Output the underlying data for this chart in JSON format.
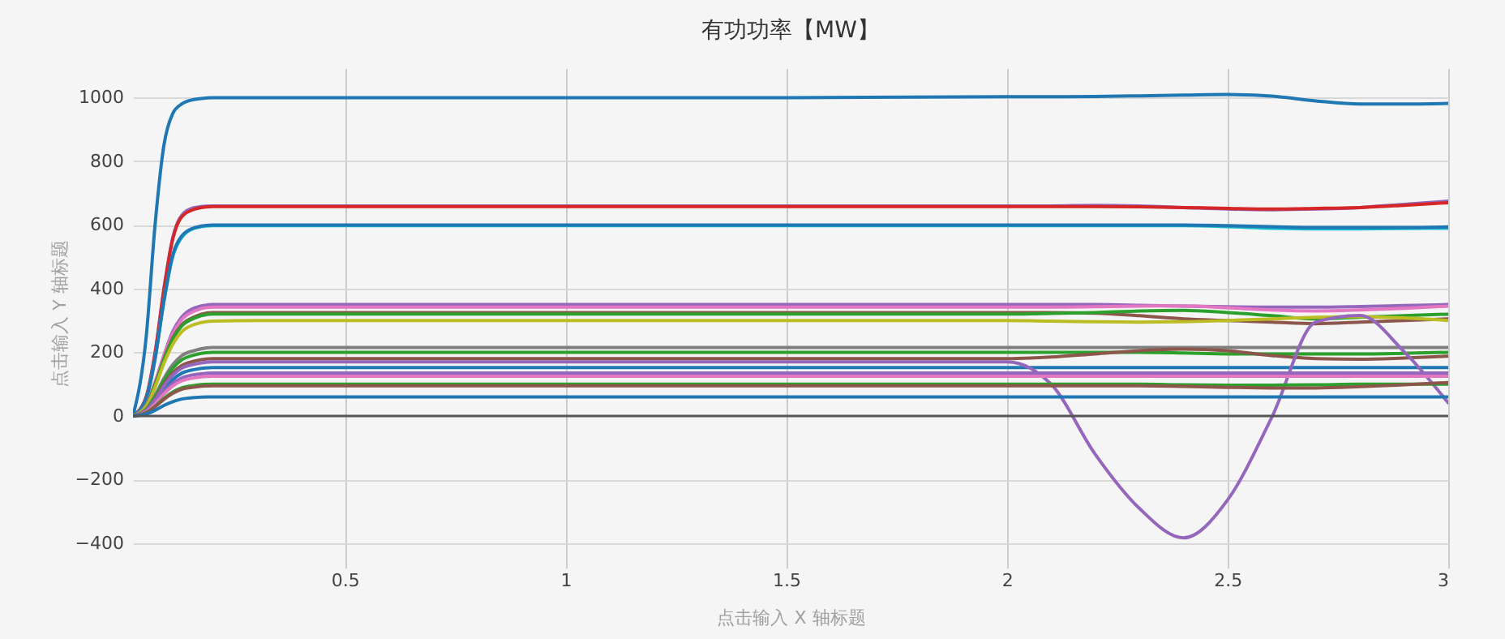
{
  "chart_data": {
    "type": "line",
    "title": "有功功率【MW】",
    "xlabel": "点击输入 X 轴标题",
    "ylabel": "点击输入 Y 轴标题",
    "x": [
      0.02,
      0.05,
      0.07,
      0.09,
      0.11,
      0.13,
      0.16,
      0.2,
      0.3,
      0.5,
      1,
      1.5,
      2,
      2.1,
      2.2,
      2.3,
      2.4,
      2.5,
      2.6,
      2.7,
      2.8,
      2.9,
      3
    ],
    "xlim": [
      0.02,
      3
    ],
    "xticks": [
      0.5,
      1,
      1.5,
      2,
      2.5,
      3
    ],
    "ylim": [
      -446,
      1093
    ],
    "yticks": [
      -400,
      -200,
      0,
      200,
      400,
      600,
      800,
      1000
    ],
    "grid": true,
    "ref_lines": [
      {
        "axis": "y",
        "value": 0,
        "color": "#555555"
      }
    ],
    "series": [
      {
        "color": "#1f77b4",
        "values": [
          0,
          250,
          600,
          850,
          950,
          980,
          995,
          1000,
          1000,
          1000,
          1000,
          1000,
          1003,
          1003,
          1004,
          1006,
          1008,
          1010,
          1005,
          990,
          980,
          980,
          982
        ]
      },
      {
        "color": "#9467bd",
        "values": [
          0,
          60,
          200,
          400,
          560,
          630,
          655,
          660,
          660,
          660,
          660,
          660,
          660,
          660,
          662,
          660,
          655,
          650,
          648,
          650,
          655,
          665,
          675
        ]
      },
      {
        "color": "#d62728",
        "values": [
          0,
          60,
          195,
          395,
          555,
          625,
          650,
          658,
          658,
          658,
          658,
          658,
          658,
          658,
          658,
          657,
          655,
          652,
          650,
          652,
          655,
          662,
          670
        ]
      },
      {
        "color": "#17becf",
        "values": [
          0,
          55,
          180,
          360,
          500,
          560,
          590,
          598,
          598,
          598,
          598,
          598,
          598,
          598,
          598,
          598,
          598,
          595,
          590,
          588,
          588,
          589,
          590
        ]
      },
      {
        "color": "#1f77b4",
        "values": [
          0,
          55,
          180,
          360,
          505,
          565,
          592,
          600,
          600,
          600,
          600,
          600,
          600,
          600,
          600,
          600,
          600,
          598,
          595,
          592,
          592,
          592,
          594
        ]
      },
      {
        "color": "#9467bd",
        "values": [
          0,
          35,
          105,
          190,
          265,
          310,
          340,
          350,
          350,
          350,
          350,
          350,
          350,
          350,
          350,
          348,
          345,
          343,
          342,
          342,
          344,
          347,
          350
        ]
      },
      {
        "color": "#e377c2",
        "values": [
          0,
          34,
          103,
          188,
          258,
          302,
          330,
          342,
          342,
          342,
          342,
          342,
          342,
          342,
          343,
          345,
          346,
          340,
          333,
          330,
          333,
          338,
          345
        ]
      },
      {
        "color": "#8c564b",
        "values": [
          0,
          32,
          98,
          178,
          245,
          286,
          312,
          325,
          325,
          325,
          325,
          325,
          325,
          325,
          323,
          315,
          305,
          300,
          295,
          290,
          295,
          300,
          305
        ]
      },
      {
        "color": "#2ca02c",
        "values": [
          0,
          32,
          96,
          176,
          240,
          282,
          308,
          320,
          320,
          320,
          320,
          320,
          320,
          322,
          325,
          330,
          332,
          325,
          315,
          305,
          310,
          315,
          320
        ]
      },
      {
        "color": "#bcbd22",
        "values": [
          0,
          30,
          90,
          165,
          225,
          264,
          288,
          298,
          300,
          300,
          300,
          300,
          300,
          298,
          296,
          295,
          296,
          300,
          305,
          310,
          312,
          308,
          300
        ]
      },
      {
        "color": "#7f7f7f",
        "values": [
          0,
          22,
          65,
          118,
          161,
          189,
          206,
          215,
          215,
          215,
          215,
          215,
          215,
          215,
          215,
          215,
          215,
          215,
          215,
          215,
          215,
          215,
          215
        ]
      },
      {
        "color": "#2ca02c",
        "values": [
          0,
          20,
          60,
          110,
          150,
          176,
          192,
          200,
          200,
          200,
          200,
          200,
          200,
          200,
          200,
          200,
          198,
          195,
          195,
          195,
          195,
          197,
          200
        ]
      },
      {
        "color": "#8c564b",
        "values": [
          0,
          18,
          54,
          99,
          135,
          158,
          173,
          180,
          180,
          180,
          180,
          180,
          180,
          185,
          195,
          205,
          210,
          205,
          190,
          180,
          178,
          182,
          188
        ]
      },
      {
        "color": "#1f77b4",
        "values": [
          0,
          15,
          46,
          84,
          114,
          134,
          146,
          152,
          152,
          152,
          152,
          152,
          152,
          152,
          152,
          152,
          152,
          152,
          152,
          152,
          152,
          152,
          152
        ]
      },
      {
        "color": "#9467bd",
        "values": [
          0,
          17,
          51,
          94,
          128,
          150,
          163,
          170,
          170,
          170,
          170,
          170,
          170,
          100,
          -120,
          -290,
          -383,
          -264,
          -5,
          295,
          316,
          202,
          41
        ]
      },
      {
        "color": "#9467bd",
        "values": [
          0,
          14,
          41,
          75,
          102,
          119,
          130,
          135,
          135,
          135,
          135,
          135,
          135,
          135,
          135,
          135,
          135,
          135,
          135,
          135,
          135,
          135,
          135
        ]
      },
      {
        "color": "#e377c2",
        "values": [
          0,
          13,
          38,
          69,
          94,
          110,
          120,
          125,
          125,
          125,
          125,
          125,
          125,
          125,
          125,
          125,
          125,
          125,
          125,
          125,
          125,
          125,
          125
        ]
      },
      {
        "color": "#2ca02c",
        "values": [
          0,
          10,
          30,
          55,
          75,
          88,
          96,
          100,
          100,
          100,
          100,
          100,
          100,
          100,
          100,
          100,
          98,
          97,
          97,
          98,
          100,
          100,
          100
        ]
      },
      {
        "color": "#8c564b",
        "values": [
          0,
          10,
          29,
          52,
          71,
          84,
          91,
          95,
          95,
          95,
          95,
          95,
          95,
          95,
          95,
          95,
          93,
          90,
          88,
          88,
          92,
          98,
          105
        ]
      },
      {
        "color": "#1f77b4",
        "values": [
          0,
          6,
          18,
          33,
          45,
          53,
          58,
          60,
          60,
          60,
          60,
          60,
          60,
          60,
          60,
          60,
          60,
          60,
          60,
          60,
          60,
          60,
          60
        ]
      }
    ]
  }
}
